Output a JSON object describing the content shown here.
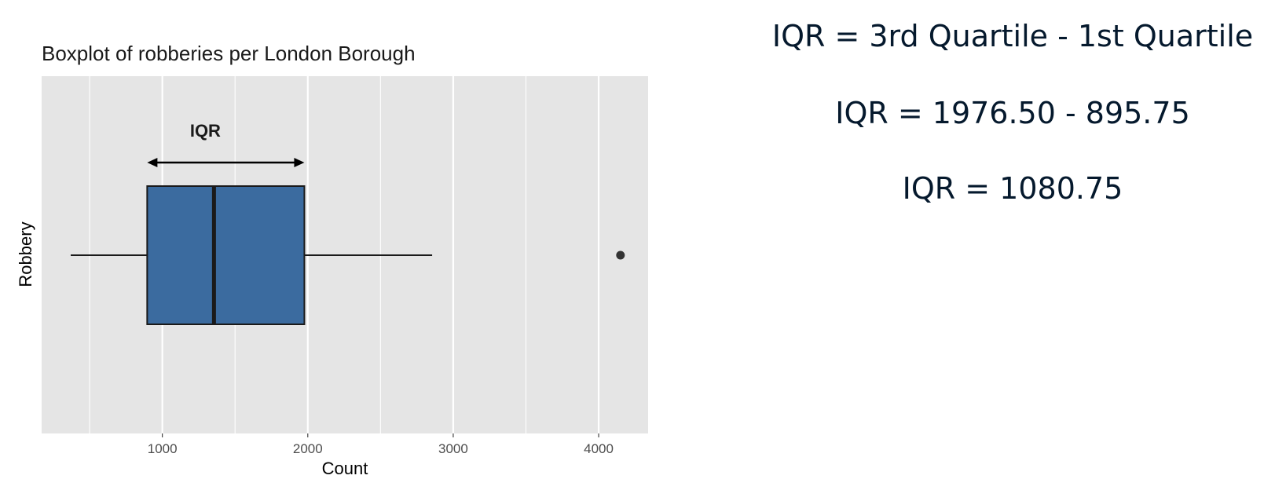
{
  "chart_data": {
    "type": "boxplot",
    "title": "Boxplot of robberies per London Borough",
    "xlabel": "Count",
    "ylabel": "Robbery",
    "xlim": [
      170,
      4340
    ],
    "x_ticks": [
      1000,
      2000,
      3000,
      4000
    ],
    "x_minor_ticks": [
      500,
      1500,
      2500,
      3500
    ],
    "grid": true,
    "orientation": "horizontal",
    "box": {
      "whisker_low": 370,
      "q1": 895.75,
      "median": 1355,
      "q3": 1976.5,
      "whisker_high": 2855,
      "outliers": [
        4150
      ],
      "fill": "#3b6b9f",
      "edge": "#1a1a1a"
    },
    "annotation": {
      "label": "IQR",
      "from": 895.75,
      "to": 1976.5
    },
    "panel_background": "#e5e5e5",
    "grid_color": "#ffffff"
  },
  "formulas": {
    "line1": "IQR = 3rd Quartile - 1st Quartile",
    "line2": "IQR = 1976.50 - 895.75",
    "line3": "IQR = 1080.75"
  },
  "colors": {
    "formula_text": "#05192d"
  }
}
